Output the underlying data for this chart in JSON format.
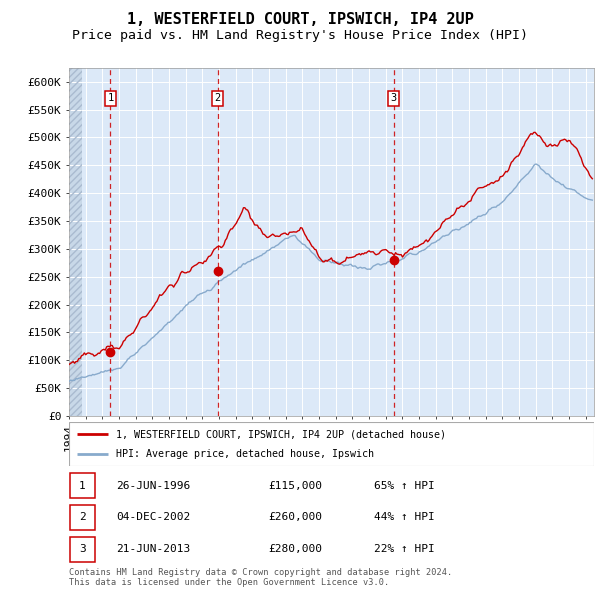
{
  "title": "1, WESTERFIELD COURT, IPSWICH, IP4 2UP",
  "subtitle": "Price paid vs. HM Land Registry's House Price Index (HPI)",
  "ylim": [
    0,
    625000
  ],
  "yticks": [
    0,
    50000,
    100000,
    150000,
    200000,
    250000,
    300000,
    350000,
    400000,
    450000,
    500000,
    550000,
    600000
  ],
  "ytick_labels": [
    "£0",
    "£50K",
    "£100K",
    "£150K",
    "£200K",
    "£250K",
    "£300K",
    "£350K",
    "£400K",
    "£450K",
    "£500K",
    "£550K",
    "£600K"
  ],
  "xlim_start": 1994.0,
  "xlim_end": 2025.5,
  "background_color": "#dce9f8",
  "hatch_region_end": 1994.75,
  "hatch_color": "#c8d8e8",
  "line_color_red": "#cc0000",
  "line_color_blue": "#88aacc",
  "sale_dates": [
    1996.484,
    2002.921,
    2013.472
  ],
  "sale_prices": [
    115000,
    260000,
    280000
  ],
  "sale_labels": [
    "1",
    "2",
    "3"
  ],
  "legend_label_red": "1, WESTERFIELD COURT, IPSWICH, IP4 2UP (detached house)",
  "legend_label_blue": "HPI: Average price, detached house, Ipswich",
  "table_rows": [
    [
      "1",
      "26-JUN-1996",
      "£115,000",
      "65% ↑ HPI"
    ],
    [
      "2",
      "04-DEC-2002",
      "£260,000",
      "44% ↑ HPI"
    ],
    [
      "3",
      "21-JUN-2013",
      "£280,000",
      "22% ↑ HPI"
    ]
  ],
  "footer": "Contains HM Land Registry data © Crown copyright and database right 2024.\nThis data is licensed under the Open Government Licence v3.0.",
  "title_fontsize": 11,
  "subtitle_fontsize": 9.5,
  "tick_fontsize": 8
}
